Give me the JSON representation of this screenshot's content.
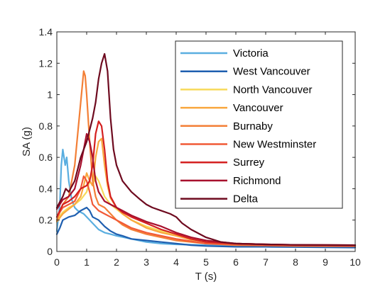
{
  "chart_data": {
    "type": "line",
    "xlabel": "T (s)",
    "ylabel": "SA (g)",
    "xlim": [
      0,
      10
    ],
    "ylim": [
      0,
      1.4
    ],
    "xticks": [
      "0",
      "1",
      "2",
      "3",
      "4",
      "5",
      "6",
      "7",
      "8",
      "9",
      "10"
    ],
    "yticks": [
      "0",
      "0.2",
      "0.4",
      "0.6",
      "0.8",
      "1",
      "1.2",
      "1.4"
    ],
    "legend_position": "top-right",
    "grid": false,
    "series": [
      {
        "name": "Victoria",
        "color": "#5aaee0",
        "points": [
          [
            0,
            0.13
          ],
          [
            0.1,
            0.3
          ],
          [
            0.15,
            0.55
          ],
          [
            0.2,
            0.65
          ],
          [
            0.28,
            0.55
          ],
          [
            0.33,
            0.6
          ],
          [
            0.4,
            0.45
          ],
          [
            0.5,
            0.33
          ],
          [
            0.6,
            0.28
          ],
          [
            0.7,
            0.26
          ],
          [
            0.8,
            0.25
          ],
          [
            0.9,
            0.24
          ],
          [
            1.0,
            0.22
          ],
          [
            1.2,
            0.18
          ],
          [
            1.4,
            0.14
          ],
          [
            1.6,
            0.12
          ],
          [
            1.8,
            0.11
          ],
          [
            2.0,
            0.1
          ],
          [
            2.5,
            0.08
          ],
          [
            3.0,
            0.06
          ],
          [
            3.5,
            0.05
          ],
          [
            4.0,
            0.045
          ],
          [
            5.0,
            0.04
          ],
          [
            6.0,
            0.035
          ],
          [
            7.0,
            0.032
          ],
          [
            8.0,
            0.03
          ],
          [
            9.0,
            0.03
          ],
          [
            10.0,
            0.03
          ]
        ]
      },
      {
        "name": "West Vancouver",
        "color": "#1f5fb0",
        "points": [
          [
            0,
            0.11
          ],
          [
            0.1,
            0.15
          ],
          [
            0.2,
            0.2
          ],
          [
            0.4,
            0.22
          ],
          [
            0.6,
            0.23
          ],
          [
            0.8,
            0.26
          ],
          [
            1.0,
            0.28
          ],
          [
            1.1,
            0.26
          ],
          [
            1.2,
            0.22
          ],
          [
            1.4,
            0.2
          ],
          [
            1.6,
            0.16
          ],
          [
            1.8,
            0.13
          ],
          [
            2.0,
            0.11
          ],
          [
            2.2,
            0.1
          ],
          [
            2.5,
            0.08
          ],
          [
            3.0,
            0.07
          ],
          [
            3.5,
            0.06
          ],
          [
            4.0,
            0.05
          ],
          [
            4.5,
            0.04
          ],
          [
            5.0,
            0.035
          ],
          [
            6.0,
            0.03
          ],
          [
            7.0,
            0.03
          ],
          [
            8.0,
            0.028
          ],
          [
            10.0,
            0.025
          ]
        ]
      },
      {
        "name": "North Vancouver",
        "color": "#f7d95a",
        "points": [
          [
            0,
            0.2
          ],
          [
            0.2,
            0.25
          ],
          [
            0.4,
            0.28
          ],
          [
            0.6,
            0.3
          ],
          [
            0.8,
            0.33
          ],
          [
            1.0,
            0.38
          ],
          [
            1.1,
            0.45
          ],
          [
            1.2,
            0.42
          ],
          [
            1.3,
            0.48
          ],
          [
            1.4,
            0.45
          ],
          [
            1.5,
            0.4
          ],
          [
            1.6,
            0.35
          ],
          [
            1.8,
            0.3
          ],
          [
            2.0,
            0.27
          ],
          [
            2.2,
            0.24
          ],
          [
            2.5,
            0.2
          ],
          [
            3.0,
            0.16
          ],
          [
            3.5,
            0.13
          ],
          [
            4.0,
            0.1
          ],
          [
            4.5,
            0.08
          ],
          [
            5.0,
            0.06
          ],
          [
            5.5,
            0.05
          ],
          [
            6.0,
            0.045
          ],
          [
            7.0,
            0.04
          ],
          [
            8.0,
            0.04
          ],
          [
            10.0,
            0.035
          ]
        ]
      },
      {
        "name": "Vancouver",
        "color": "#f9a73e",
        "points": [
          [
            0,
            0.19
          ],
          [
            0.2,
            0.24
          ],
          [
            0.4,
            0.27
          ],
          [
            0.6,
            0.3
          ],
          [
            0.8,
            0.35
          ],
          [
            0.9,
            0.42
          ],
          [
            1.0,
            0.5
          ],
          [
            1.1,
            0.45
          ],
          [
            1.2,
            0.42
          ],
          [
            1.3,
            0.6
          ],
          [
            1.4,
            0.7
          ],
          [
            1.5,
            0.72
          ],
          [
            1.6,
            0.55
          ],
          [
            1.7,
            0.42
          ],
          [
            1.8,
            0.34
          ],
          [
            2.0,
            0.28
          ],
          [
            2.2,
            0.24
          ],
          [
            2.5,
            0.2
          ],
          [
            3.0,
            0.15
          ],
          [
            3.5,
            0.12
          ],
          [
            4.0,
            0.1
          ],
          [
            4.5,
            0.075
          ],
          [
            5.0,
            0.06
          ],
          [
            6.0,
            0.05
          ],
          [
            7.0,
            0.045
          ],
          [
            8.0,
            0.04
          ],
          [
            10.0,
            0.038
          ]
        ]
      },
      {
        "name": "Burnaby",
        "color": "#f37f36",
        "points": [
          [
            0,
            0.2
          ],
          [
            0.2,
            0.3
          ],
          [
            0.4,
            0.35
          ],
          [
            0.6,
            0.55
          ],
          [
            0.7,
            0.75
          ],
          [
            0.8,
            0.95
          ],
          [
            0.9,
            1.15
          ],
          [
            0.95,
            1.12
          ],
          [
            1.0,
            1.0
          ],
          [
            1.1,
            0.7
          ],
          [
            1.2,
            0.45
          ],
          [
            1.3,
            0.35
          ],
          [
            1.4,
            0.3
          ],
          [
            1.6,
            0.28
          ],
          [
            1.8,
            0.24
          ],
          [
            2.0,
            0.2
          ],
          [
            2.2,
            0.17
          ],
          [
            2.5,
            0.14
          ],
          [
            3.0,
            0.11
          ],
          [
            3.5,
            0.09
          ],
          [
            4.0,
            0.07
          ],
          [
            4.5,
            0.06
          ],
          [
            5.0,
            0.05
          ],
          [
            6.0,
            0.04
          ],
          [
            7.0,
            0.038
          ],
          [
            8.0,
            0.035
          ],
          [
            10.0,
            0.033
          ]
        ]
      },
      {
        "name": "New Westminster",
        "color": "#f15a37",
        "points": [
          [
            0,
            0.22
          ],
          [
            0.2,
            0.28
          ],
          [
            0.4,
            0.3
          ],
          [
            0.6,
            0.32
          ],
          [
            0.8,
            0.4
          ],
          [
            0.9,
            0.48
          ],
          [
            1.0,
            0.45
          ],
          [
            1.1,
            0.38
          ],
          [
            1.2,
            0.3
          ],
          [
            1.4,
            0.26
          ],
          [
            1.6,
            0.24
          ],
          [
            1.8,
            0.22
          ],
          [
            2.0,
            0.2
          ],
          [
            2.2,
            0.18
          ],
          [
            2.5,
            0.15
          ],
          [
            3.0,
            0.12
          ],
          [
            3.5,
            0.1
          ],
          [
            4.0,
            0.08
          ],
          [
            4.5,
            0.065
          ],
          [
            5.0,
            0.05
          ],
          [
            6.0,
            0.045
          ],
          [
            7.0,
            0.04
          ],
          [
            8.0,
            0.038
          ],
          [
            10.0,
            0.035
          ]
        ]
      },
      {
        "name": "Surrey",
        "color": "#d42020",
        "points": [
          [
            0,
            0.22
          ],
          [
            0.2,
            0.3
          ],
          [
            0.4,
            0.32
          ],
          [
            0.6,
            0.35
          ],
          [
            0.8,
            0.4
          ],
          [
            1.0,
            0.42
          ],
          [
            1.1,
            0.45
          ],
          [
            1.2,
            0.55
          ],
          [
            1.3,
            0.75
          ],
          [
            1.4,
            0.83
          ],
          [
            1.5,
            0.8
          ],
          [
            1.6,
            0.65
          ],
          [
            1.7,
            0.45
          ],
          [
            1.8,
            0.35
          ],
          [
            2.0,
            0.28
          ],
          [
            2.2,
            0.25
          ],
          [
            2.5,
            0.22
          ],
          [
            3.0,
            0.18
          ],
          [
            3.5,
            0.14
          ],
          [
            4.0,
            0.11
          ],
          [
            4.5,
            0.08
          ],
          [
            5.0,
            0.06
          ],
          [
            6.0,
            0.05
          ],
          [
            7.0,
            0.045
          ],
          [
            8.0,
            0.042
          ],
          [
            10.0,
            0.04
          ]
        ]
      },
      {
        "name": "Richmond",
        "color": "#a8102d",
        "points": [
          [
            0,
            0.27
          ],
          [
            0.2,
            0.33
          ],
          [
            0.4,
            0.35
          ],
          [
            0.6,
            0.4
          ],
          [
            0.8,
            0.55
          ],
          [
            0.9,
            0.65
          ],
          [
            1.0,
            0.75
          ],
          [
            1.1,
            0.7
          ],
          [
            1.2,
            0.6
          ],
          [
            1.3,
            0.45
          ],
          [
            1.4,
            0.38
          ],
          [
            1.6,
            0.32
          ],
          [
            1.8,
            0.3
          ],
          [
            2.0,
            0.28
          ],
          [
            2.2,
            0.26
          ],
          [
            2.5,
            0.23
          ],
          [
            3.0,
            0.19
          ],
          [
            3.5,
            0.16
          ],
          [
            4.0,
            0.12
          ],
          [
            4.5,
            0.09
          ],
          [
            5.0,
            0.07
          ],
          [
            6.0,
            0.05
          ],
          [
            7.0,
            0.045
          ],
          [
            8.0,
            0.042
          ],
          [
            10.0,
            0.04
          ]
        ]
      },
      {
        "name": "Delta",
        "color": "#6e0a1f",
        "points": [
          [
            0,
            0.28
          ],
          [
            0.2,
            0.35
          ],
          [
            0.3,
            0.4
          ],
          [
            0.4,
            0.38
          ],
          [
            0.6,
            0.45
          ],
          [
            0.8,
            0.6
          ],
          [
            1.0,
            0.7
          ],
          [
            1.2,
            0.85
          ],
          [
            1.3,
            0.95
          ],
          [
            1.4,
            1.1
          ],
          [
            1.5,
            1.2
          ],
          [
            1.6,
            1.26
          ],
          [
            1.7,
            1.15
          ],
          [
            1.8,
            0.85
          ],
          [
            1.9,
            0.65
          ],
          [
            2.0,
            0.55
          ],
          [
            2.2,
            0.45
          ],
          [
            2.5,
            0.38
          ],
          [
            2.8,
            0.33
          ],
          [
            3.0,
            0.3
          ],
          [
            3.2,
            0.28
          ],
          [
            3.5,
            0.26
          ],
          [
            3.8,
            0.24
          ],
          [
            4.0,
            0.22
          ],
          [
            4.2,
            0.18
          ],
          [
            4.5,
            0.14
          ],
          [
            5.0,
            0.09
          ],
          [
            5.5,
            0.06
          ],
          [
            6.0,
            0.05
          ],
          [
            7.0,
            0.045
          ],
          [
            8.0,
            0.042
          ],
          [
            10.0,
            0.04
          ]
        ]
      }
    ]
  }
}
